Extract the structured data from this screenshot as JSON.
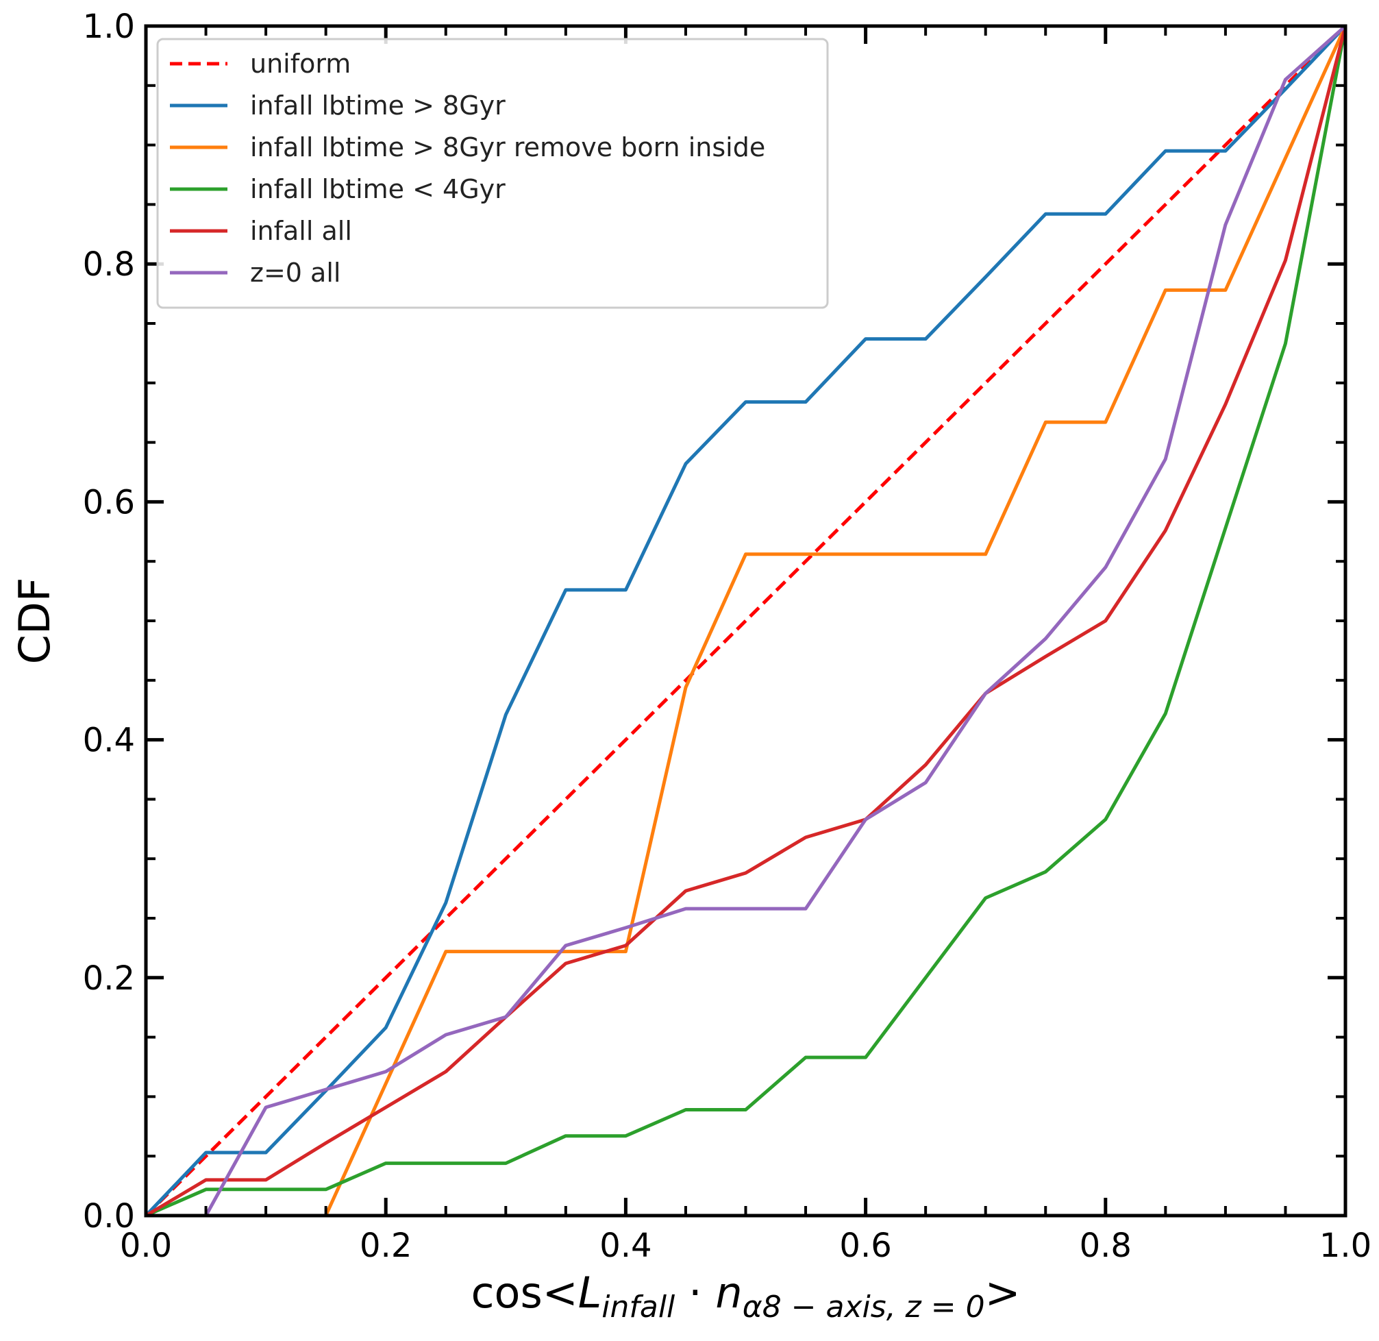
{
  "chart_data": {
    "type": "line",
    "xlabel": {
      "prefix": "cos<",
      "L": "L",
      "L_sub": "infall",
      "dot": " · ",
      "n": "n",
      "n_sub": "α8 − axis, z = 0",
      "suffix": ">"
    },
    "ylabel": "CDF",
    "xlim": [
      0,
      1
    ],
    "ylim": [
      0,
      1
    ],
    "major_ticks": [
      0.0,
      0.2,
      0.4,
      0.6,
      0.8,
      1.0
    ],
    "tick_labels": [
      "0.0",
      "0.2",
      "0.4",
      "0.6",
      "0.8",
      "1.0"
    ],
    "minor_tick_step": 0.05,
    "grid": false,
    "legend_position": "upper-left",
    "series": [
      {
        "name": "uniform",
        "color": "#ff0000",
        "dashed": true,
        "x": [
          0,
          1
        ],
        "y": [
          0,
          1
        ]
      },
      {
        "name": "infall lbtime > 8Gyr",
        "color": "#1f77b4",
        "dashed": false,
        "x": [
          0,
          0.05,
          0.1,
          0.15,
          0.2,
          0.25,
          0.3,
          0.35,
          0.4,
          0.45,
          0.5,
          0.55,
          0.6,
          0.65,
          0.7,
          0.75,
          0.8,
          0.85,
          0.9,
          0.95,
          1.0
        ],
        "y": [
          0,
          0.053,
          0.053,
          0.105,
          0.158,
          0.263,
          0.421,
          0.526,
          0.526,
          0.632,
          0.684,
          0.684,
          0.737,
          0.737,
          0.789,
          0.842,
          0.842,
          0.895,
          0.895,
          0.947,
          1.0
        ]
      },
      {
        "name": "infall lbtime > 8Gyr remove born inside",
        "color": "#ff7f0e",
        "dashed": false,
        "x": [
          0.15,
          0.2,
          0.25,
          0.3,
          0.35,
          0.4,
          0.45,
          0.5,
          0.55,
          0.6,
          0.65,
          0.7,
          0.75,
          0.8,
          0.85,
          0.9,
          0.95,
          1.0
        ],
        "y": [
          0,
          0.111,
          0.222,
          0.222,
          0.222,
          0.222,
          0.444,
          0.556,
          0.556,
          0.556,
          0.556,
          0.556,
          0.667,
          0.667,
          0.778,
          0.778,
          0.889,
          1.0
        ]
      },
      {
        "name": "infall lbtime < 4Gyr",
        "color": "#2ca02c",
        "dashed": false,
        "x": [
          0,
          0.05,
          0.1,
          0.15,
          0.2,
          0.25,
          0.3,
          0.35,
          0.4,
          0.45,
          0.5,
          0.55,
          0.6,
          0.65,
          0.7,
          0.75,
          0.8,
          0.85,
          0.9,
          0.95,
          1.0
        ],
        "y": [
          0,
          0.022,
          0.022,
          0.022,
          0.044,
          0.044,
          0.044,
          0.067,
          0.067,
          0.089,
          0.089,
          0.133,
          0.133,
          0.2,
          0.267,
          0.289,
          0.333,
          0.422,
          0.578,
          0.733,
          1.0
        ]
      },
      {
        "name": "infall all",
        "color": "#d62728",
        "dashed": false,
        "x": [
          0,
          0.05,
          0.1,
          0.15,
          0.2,
          0.25,
          0.3,
          0.35,
          0.4,
          0.45,
          0.5,
          0.55,
          0.6,
          0.65,
          0.7,
          0.75,
          0.8,
          0.85,
          0.9,
          0.95,
          1.0
        ],
        "y": [
          0,
          0.03,
          0.03,
          0.061,
          0.091,
          0.121,
          0.167,
          0.212,
          0.227,
          0.273,
          0.288,
          0.318,
          0.333,
          0.379,
          0.439,
          0.47,
          0.5,
          0.576,
          0.682,
          0.803,
          1.0
        ]
      },
      {
        "name": "z=0 all",
        "color": "#9467bd",
        "dashed": false,
        "x": [
          0.05,
          0.1,
          0.15,
          0.2,
          0.25,
          0.3,
          0.35,
          0.4,
          0.45,
          0.5,
          0.55,
          0.6,
          0.65,
          0.7,
          0.75,
          0.8,
          0.85,
          0.9,
          0.95,
          1.0
        ],
        "y": [
          0,
          0.091,
          0.106,
          0.121,
          0.152,
          0.167,
          0.227,
          0.242,
          0.258,
          0.258,
          0.258,
          0.333,
          0.364,
          0.439,
          0.485,
          0.545,
          0.636,
          0.833,
          0.955,
          1.0
        ]
      }
    ]
  }
}
